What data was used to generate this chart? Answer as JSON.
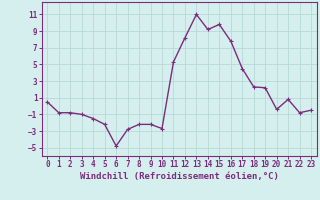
{
  "x": [
    0,
    1,
    2,
    3,
    4,
    5,
    6,
    7,
    8,
    9,
    10,
    11,
    12,
    13,
    14,
    15,
    16,
    17,
    18,
    19,
    20,
    21,
    22,
    23
  ],
  "y": [
    0.5,
    -0.8,
    -0.8,
    -1.0,
    -1.5,
    -2.2,
    -4.8,
    -2.8,
    -2.2,
    -2.2,
    -2.7,
    5.3,
    8.2,
    11.0,
    9.2,
    9.8,
    7.8,
    4.5,
    2.3,
    2.2,
    -0.4,
    0.8,
    -0.8,
    -0.5
  ],
  "line_color": "#7b2d7b",
  "marker": "+",
  "marker_color": "#7b2d7b",
  "marker_size": 3,
  "line_width": 1.0,
  "bg_color": "#d5efef",
  "grid_color": "#b8d8d8",
  "xlabel": "Windchill (Refroidissement éolien,°C)",
  "xlim": [
    -0.5,
    23.5
  ],
  "ylim": [
    -6,
    12.5
  ],
  "yticks": [
    -5,
    -3,
    -1,
    1,
    3,
    5,
    7,
    9,
    11
  ],
  "xticks": [
    0,
    1,
    2,
    3,
    4,
    5,
    6,
    7,
    8,
    9,
    10,
    11,
    12,
    13,
    14,
    15,
    16,
    17,
    18,
    19,
    20,
    21,
    22,
    23
  ],
  "tick_labelsize": 5.5,
  "xlabel_fontsize": 6.5,
  "spine_color": "#7b2d7b"
}
